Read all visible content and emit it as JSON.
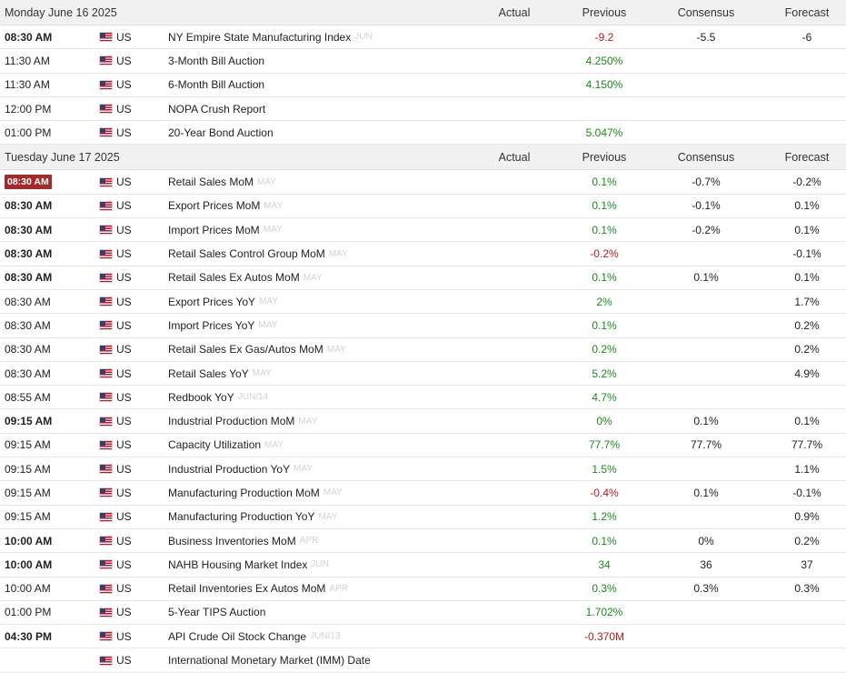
{
  "columns": {
    "actual": "Actual",
    "previous": "Previous",
    "consensus": "Consensus",
    "forecast": "Forecast"
  },
  "colors": {
    "positive": "#1a8a1a",
    "negative": "#c01818",
    "highlight_badge": "#a52a2a",
    "header_bg": "#f1f1f1"
  },
  "days": [
    {
      "date": "Monday June 16 2025",
      "events": [
        {
          "time": "08:30 AM",
          "bold": true,
          "highlight": false,
          "country": "US",
          "event": "NY Empire State Manufacturing Index",
          "period": "JUN",
          "actual": "",
          "previous": "-9.2",
          "previous_sign": "neg",
          "consensus": "-5.5",
          "forecast": "-6"
        },
        {
          "time": "11:30 AM",
          "bold": false,
          "highlight": false,
          "country": "US",
          "event": "3-Month Bill Auction",
          "period": "",
          "actual": "",
          "previous": "4.250%",
          "previous_sign": "pos",
          "consensus": "",
          "forecast": ""
        },
        {
          "time": "11:30 AM",
          "bold": false,
          "highlight": false,
          "country": "US",
          "event": "6-Month Bill Auction",
          "period": "",
          "actual": "",
          "previous": "4.150%",
          "previous_sign": "pos",
          "consensus": "",
          "forecast": ""
        },
        {
          "time": "12:00 PM",
          "bold": false,
          "highlight": false,
          "country": "US",
          "event": "NOPA Crush Report",
          "period": "",
          "actual": "",
          "previous": "",
          "previous_sign": "",
          "consensus": "",
          "forecast": ""
        },
        {
          "time": "01:00 PM",
          "bold": false,
          "highlight": false,
          "country": "US",
          "event": "20-Year Bond Auction",
          "period": "",
          "actual": "",
          "previous": "5.047%",
          "previous_sign": "pos",
          "consensus": "",
          "forecast": ""
        }
      ]
    },
    {
      "date": "Tuesday June 17 2025",
      "events": [
        {
          "time": "08:30 AM",
          "bold": true,
          "highlight": true,
          "country": "US",
          "event": "Retail Sales MoM",
          "period": "MAY",
          "actual": "",
          "previous": "0.1%",
          "previous_sign": "pos",
          "consensus": "-0.7%",
          "forecast": "-0.2%"
        },
        {
          "time": "08:30 AM",
          "bold": true,
          "highlight": false,
          "country": "US",
          "event": "Export Prices MoM",
          "period": "MAY",
          "actual": "",
          "previous": "0.1%",
          "previous_sign": "pos",
          "consensus": "-0.1%",
          "forecast": "0.1%"
        },
        {
          "time": "08:30 AM",
          "bold": true,
          "highlight": false,
          "country": "US",
          "event": "Import Prices MoM",
          "period": "MAY",
          "actual": "",
          "previous": "0.1%",
          "previous_sign": "pos",
          "consensus": "-0.2%",
          "forecast": "0.1%"
        },
        {
          "time": "08:30 AM",
          "bold": true,
          "highlight": false,
          "country": "US",
          "event": "Retail Sales Control Group MoM",
          "period": "MAY",
          "actual": "",
          "previous": "-0.2%",
          "previous_sign": "neg",
          "consensus": "",
          "forecast": "-0.1%"
        },
        {
          "time": "08:30 AM",
          "bold": true,
          "highlight": false,
          "country": "US",
          "event": "Retail Sales Ex Autos MoM",
          "period": "MAY",
          "actual": "",
          "previous": "0.1%",
          "previous_sign": "pos",
          "consensus": "0.1%",
          "forecast": "0.1%"
        },
        {
          "time": "08:30 AM",
          "bold": false,
          "highlight": false,
          "country": "US",
          "event": "Export Prices YoY",
          "period": "MAY",
          "actual": "",
          "previous": "2%",
          "previous_sign": "pos",
          "consensus": "",
          "forecast": "1.7%"
        },
        {
          "time": "08:30 AM",
          "bold": false,
          "highlight": false,
          "country": "US",
          "event": "Import Prices YoY",
          "period": "MAY",
          "actual": "",
          "previous": "0.1%",
          "previous_sign": "pos",
          "consensus": "",
          "forecast": "0.2%"
        },
        {
          "time": "08:30 AM",
          "bold": false,
          "highlight": false,
          "country": "US",
          "event": "Retail Sales Ex Gas/Autos MoM",
          "period": "MAY",
          "actual": "",
          "previous": "0.2%",
          "previous_sign": "pos",
          "consensus": "",
          "forecast": "0.2%"
        },
        {
          "time": "08:30 AM",
          "bold": false,
          "highlight": false,
          "country": "US",
          "event": "Retail Sales YoY",
          "period": "MAY",
          "actual": "",
          "previous": "5.2%",
          "previous_sign": "pos",
          "consensus": "",
          "forecast": "4.9%"
        },
        {
          "time": "08:55 AM",
          "bold": false,
          "highlight": false,
          "country": "US",
          "event": "Redbook YoY",
          "period": "JUN/14",
          "actual": "",
          "previous": "4.7%",
          "previous_sign": "pos",
          "consensus": "",
          "forecast": ""
        },
        {
          "time": "09:15 AM",
          "bold": true,
          "highlight": false,
          "country": "US",
          "event": "Industrial Production MoM",
          "period": "MAY",
          "actual": "",
          "previous": "0%",
          "previous_sign": "pos",
          "consensus": "0.1%",
          "forecast": "0.1%"
        },
        {
          "time": "09:15 AM",
          "bold": false,
          "highlight": false,
          "country": "US",
          "event": "Capacity Utilization",
          "period": "MAY",
          "actual": "",
          "previous": "77.7%",
          "previous_sign": "pos",
          "consensus": "77.7%",
          "forecast": "77.7%"
        },
        {
          "time": "09:15 AM",
          "bold": false,
          "highlight": false,
          "country": "US",
          "event": "Industrial Production YoY",
          "period": "MAY",
          "actual": "",
          "previous": "1.5%",
          "previous_sign": "pos",
          "consensus": "",
          "forecast": "1.1%"
        },
        {
          "time": "09:15 AM",
          "bold": false,
          "highlight": false,
          "country": "US",
          "event": "Manufacturing Production MoM",
          "period": "MAY",
          "actual": "",
          "previous": "-0.4%",
          "previous_sign": "neg",
          "consensus": "0.1%",
          "forecast": "-0.1%"
        },
        {
          "time": "09:15 AM",
          "bold": false,
          "highlight": false,
          "country": "US",
          "event": "Manufacturing Production YoY",
          "period": "MAY",
          "actual": "",
          "previous": "1.2%",
          "previous_sign": "pos",
          "consensus": "",
          "forecast": "0.9%"
        },
        {
          "time": "10:00 AM",
          "bold": true,
          "highlight": false,
          "country": "US",
          "event": "Business Inventories MoM",
          "period": "APR",
          "actual": "",
          "previous": "0.1%",
          "previous_sign": "pos",
          "consensus": "0%",
          "forecast": "0.2%"
        },
        {
          "time": "10:00 AM",
          "bold": true,
          "highlight": false,
          "country": "US",
          "event": "NAHB Housing Market Index",
          "period": "JUN",
          "actual": "",
          "previous": "34",
          "previous_sign": "pos",
          "consensus": "36",
          "forecast": "37"
        },
        {
          "time": "10:00 AM",
          "bold": false,
          "highlight": false,
          "country": "US",
          "event": "Retail Inventories Ex Autos MoM",
          "period": "APR",
          "actual": "",
          "previous": "0.3%",
          "previous_sign": "pos",
          "consensus": "0.3%",
          "forecast": "0.3%"
        },
        {
          "time": "01:00 PM",
          "bold": false,
          "highlight": false,
          "country": "US",
          "event": "5-Year TIPS Auction",
          "period": "",
          "actual": "",
          "previous": "1.702%",
          "previous_sign": "pos",
          "consensus": "",
          "forecast": ""
        },
        {
          "time": "04:30 PM",
          "bold": true,
          "highlight": false,
          "country": "US",
          "event": "API Crude Oil Stock Change",
          "period": "JUN/13",
          "actual": "",
          "previous": "-0.370M",
          "previous_sign": "neg",
          "consensus": "",
          "forecast": ""
        },
        {
          "time": "",
          "bold": false,
          "highlight": false,
          "country": "US",
          "event": "International Monetary Market (IMM) Date",
          "period": "",
          "actual": "",
          "previous": "",
          "previous_sign": "",
          "consensus": "",
          "forecast": ""
        }
      ]
    }
  ]
}
